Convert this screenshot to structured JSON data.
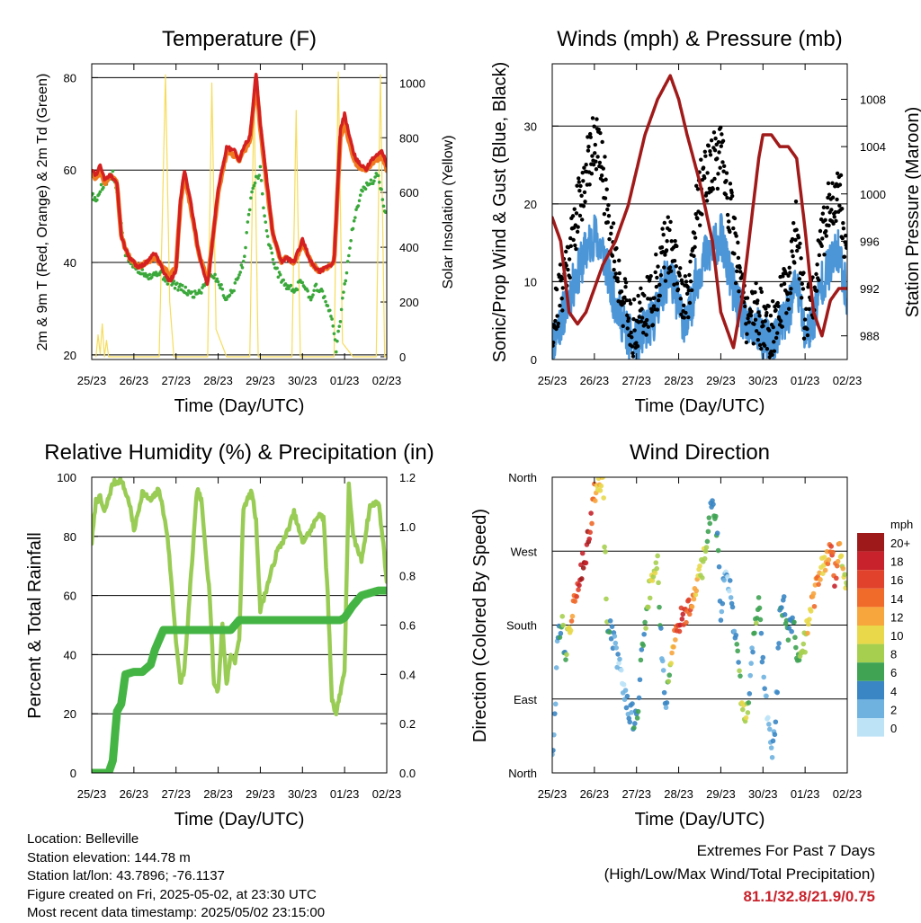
{
  "chart_data": [
    {
      "type": "line",
      "title": "Temperature (F)",
      "xlabel": "Time (Day/UTC)",
      "ylabel": "2m & 9m T (Red, Orange) & 2m Td (Green)",
      "y2label": "Solar Insolation (Yellow)",
      "x_ticks": [
        "25/23",
        "26/23",
        "27/23",
        "28/23",
        "29/23",
        "30/23",
        "01/23",
        "02/23"
      ],
      "y_ticks": [
        20,
        40,
        60,
        80
      ],
      "y2_ticks": [
        0,
        200,
        400,
        600,
        800,
        1000
      ],
      "ylim": [
        19,
        83
      ],
      "y2lim": [
        -10,
        1070
      ],
      "grid": true,
      "series": [
        {
          "name": "2m T",
          "color": "#d42020",
          "axis": "left",
          "x": [
            0,
            0.1,
            0.2,
            0.3,
            0.45,
            0.6,
            0.7,
            0.8,
            0.9,
            1.0,
            1.1,
            1.3,
            1.5,
            1.7,
            1.85,
            2.0,
            2.1,
            2.2,
            2.35,
            2.5,
            2.6,
            2.75,
            3.0,
            3.2,
            3.4,
            3.5,
            3.6,
            3.75,
            3.9,
            4.0,
            4.15,
            4.3,
            4.5,
            4.6,
            4.8,
            5.0,
            5.2,
            5.4,
            5.6,
            5.75,
            5.9,
            6.0,
            6.2,
            6.3,
            6.5,
            6.7,
            6.9,
            7.0
          ],
          "values": [
            60,
            59,
            61,
            58,
            59,
            57,
            46,
            43,
            41,
            40,
            39,
            40,
            42,
            38,
            36,
            38,
            53,
            60,
            53,
            44,
            40,
            35,
            56,
            65,
            64,
            62,
            65,
            67,
            81,
            70,
            58,
            46,
            40,
            41,
            40,
            45,
            40,
            38,
            39,
            40,
            69,
            72,
            64,
            62,
            60,
            63,
            64,
            61
          ]
        },
        {
          "name": "9m T",
          "color": "#f07a20",
          "axis": "left",
          "x": [
            0,
            0.1,
            0.2,
            0.3,
            0.45,
            0.6,
            0.7,
            0.8,
            0.9,
            1.0,
            1.1,
            1.3,
            1.5,
            1.7,
            1.85,
            2.0,
            2.1,
            2.2,
            2.35,
            2.5,
            2.6,
            2.75,
            3.0,
            3.2,
            3.4,
            3.5,
            3.6,
            3.75,
            3.9,
            4.0,
            4.15,
            4.3,
            4.5,
            4.6,
            4.8,
            5.0,
            5.2,
            5.4,
            5.6,
            5.75,
            5.9,
            6.0,
            6.2,
            6.3,
            6.5,
            6.7,
            6.9,
            7.0
          ],
          "values": [
            59,
            58,
            60,
            57,
            59,
            57,
            46,
            43,
            41,
            40,
            39,
            40,
            41,
            39,
            37,
            39,
            52,
            59,
            52,
            44,
            40,
            36,
            55,
            64,
            63,
            62,
            64,
            66,
            79,
            69,
            57,
            46,
            40,
            41,
            40,
            44,
            40,
            38,
            39,
            40,
            67,
            70,
            63,
            61,
            60,
            62,
            63,
            60
          ]
        },
        {
          "name": "2m Td",
          "color": "#3aa83a",
          "axis": "left",
          "x": [
            0,
            0.1,
            0.2,
            0.3,
            0.4,
            0.5,
            0.6,
            0.8,
            1.0,
            1.2,
            1.4,
            1.6,
            1.8,
            2.0,
            2.2,
            2.4,
            2.6,
            2.8,
            3.0,
            3.2,
            3.4,
            3.6,
            3.8,
            3.9,
            4.0,
            4.1,
            4.2,
            4.4,
            4.6,
            4.8,
            5.0,
            5.2,
            5.3,
            5.5,
            5.6,
            5.7,
            5.8,
            6.0,
            6.2,
            6.4,
            6.6,
            6.8,
            6.9,
            7.0
          ],
          "values": [
            55,
            53,
            56,
            57,
            58,
            59,
            55,
            42,
            39,
            38,
            37,
            38,
            36,
            35,
            34,
            33,
            34,
            38,
            36,
            32,
            35,
            40,
            56,
            58,
            60,
            50,
            44,
            38,
            35,
            34,
            36,
            32,
            35,
            33,
            30,
            28,
            21,
            35,
            48,
            56,
            57,
            59,
            54,
            49
          ]
        },
        {
          "name": "Solar Insolation",
          "color": "#f6dc5a",
          "axis": "right",
          "x": [
            0.1,
            0.15,
            0.2,
            0.25,
            0.3,
            0.35,
            0.4,
            1.2,
            1.6,
            1.75,
            1.85,
            1.95,
            2.3,
            2.75,
            2.85,
            2.95,
            3.2,
            3.3,
            3.75,
            3.85,
            3.95,
            4.2,
            4.3,
            4.75,
            4.85,
            4.95,
            5.2,
            5.3,
            5.75,
            5.85,
            5.95,
            6.2,
            6.3,
            6.75,
            6.85,
            6.95,
            7.0
          ],
          "values": [
            0,
            80,
            10,
            120,
            0,
            60,
            0,
            0,
            0,
            1030,
            200,
            0,
            0,
            0,
            1000,
            100,
            0,
            0,
            0,
            960,
            0,
            0,
            0,
            0,
            900,
            0,
            0,
            0,
            0,
            1040,
            50,
            0,
            0,
            0,
            1030,
            0,
            0
          ]
        }
      ]
    },
    {
      "type": "scatter",
      "title": "Winds (mph) & Pressure (mb)",
      "xlabel": "Time (Day/UTC)",
      "ylabel": "Sonic/Prop Wind & Gust (Blue, Black)",
      "y2label": "Station Pressure (Maroon)",
      "x_ticks": [
        "25/23",
        "26/23",
        "27/23",
        "28/23",
        "29/23",
        "30/23",
        "01/23",
        "02/23"
      ],
      "y_ticks": [
        0,
        10,
        20,
        30
      ],
      "y2_ticks": [
        988,
        992,
        996,
        1000,
        1004,
        1008
      ],
      "ylim": [
        0,
        38
      ],
      "y2lim": [
        986,
        1011
      ],
      "grid": true,
      "series": [
        {
          "name": "Sonic/Prop Wind",
          "color": "#4c96d8",
          "axis": "left",
          "x": [
            0,
            0.2,
            0.4,
            0.6,
            0.8,
            1.0,
            1.2,
            1.4,
            1.6,
            1.8,
            2.0,
            2.2,
            2.4,
            2.6,
            2.8,
            3.0,
            3.2,
            3.4,
            3.6,
            3.8,
            4.0,
            4.2,
            4.4,
            4.6,
            4.8,
            5.0,
            5.2,
            5.4,
            5.6,
            5.8,
            6.0,
            6.2,
            6.4,
            6.6,
            6.8,
            7.0
          ],
          "values": [
            2,
            5,
            8,
            11,
            14,
            16,
            14,
            9,
            6,
            3,
            2,
            4,
            5,
            9,
            11,
            7,
            4,
            10,
            13,
            14,
            16,
            11,
            7,
            4,
            4,
            3,
            2,
            4,
            6,
            10,
            3,
            5,
            10,
            12,
            14,
            8
          ]
        },
        {
          "name": "Gust",
          "color": "#000000",
          "axis": "left",
          "x": [
            0,
            0.2,
            0.4,
            0.6,
            0.8,
            1.0,
            1.2,
            1.4,
            1.6,
            1.8,
            2.0,
            2.2,
            2.4,
            2.6,
            2.8,
            3.0,
            3.2,
            3.4,
            3.6,
            3.8,
            4.0,
            4.2,
            4.4,
            4.6,
            4.8,
            5.0,
            5.2,
            5.4,
            5.6,
            5.8,
            6.0,
            6.2,
            6.4,
            6.6,
            6.8,
            7.0
          ],
          "values": [
            4,
            9,
            14,
            19,
            24,
            29,
            24,
            16,
            10,
            5,
            4,
            7,
            8,
            13,
            15,
            10,
            6,
            18,
            24,
            25,
            26,
            20,
            12,
            6,
            6,
            5,
            4,
            7,
            9,
            18,
            5,
            9,
            16,
            20,
            22,
            14
          ]
        },
        {
          "name": "Station Pressure",
          "color": "#a11a1a",
          "axis": "right",
          "x": [
            0,
            0.2,
            0.4,
            0.6,
            0.8,
            1.0,
            1.2,
            1.5,
            1.8,
            2.0,
            2.2,
            2.5,
            2.8,
            3.0,
            3.2,
            3.5,
            3.8,
            4.0,
            4.2,
            4.3,
            4.5,
            4.7,
            4.9,
            5.0,
            5.2,
            5.4,
            5.6,
            5.8,
            6.0,
            6.2,
            6.4,
            6.6,
            6.8,
            7.0
          ],
          "values": [
            998,
            996,
            990,
            989,
            990,
            992,
            994,
            996,
            999,
            1002,
            1005,
            1008,
            1010,
            1008,
            1005,
            1001,
            996,
            990,
            988,
            987,
            991,
            997,
            1003,
            1005,
            1005,
            1004,
            1004,
            1003,
            997,
            990,
            988,
            991,
            992,
            992
          ]
        }
      ]
    },
    {
      "type": "line",
      "title": "Relative Humidity (%) & Precipitation (in)",
      "xlabel": "Time (Day/UTC)",
      "ylabel": "Percent & Total Rainfall",
      "x_ticks": [
        "25/23",
        "26/23",
        "27/23",
        "28/23",
        "29/23",
        "30/23",
        "01/23",
        "02/23"
      ],
      "y_ticks": [
        0,
        20,
        40,
        60,
        80,
        100
      ],
      "y2_ticks": [
        "0.0",
        "0.2",
        "0.4",
        "0.6",
        "0.8",
        "1.0",
        "1.2"
      ],
      "ylim": [
        0,
        100
      ],
      "y2lim": [
        0,
        1.2
      ],
      "grid": true,
      "series": [
        {
          "name": "Relative Humidity",
          "color": "#99cc55",
          "axis": "left",
          "x": [
            0,
            0.1,
            0.2,
            0.3,
            0.5,
            0.7,
            0.9,
            1.0,
            1.1,
            1.2,
            1.4,
            1.6,
            1.8,
            2.0,
            2.1,
            2.2,
            2.3,
            2.5,
            2.6,
            2.8,
            2.9,
            3.0,
            3.1,
            3.2,
            3.3,
            3.4,
            3.5,
            3.6,
            3.8,
            3.9,
            4.0,
            4.2,
            4.4,
            4.6,
            4.8,
            5.0,
            5.2,
            5.4,
            5.5,
            5.6,
            5.7,
            5.8,
            6.0,
            6.1,
            6.2,
            6.4,
            6.6,
            6.8,
            6.9,
            7.0
          ],
          "values": [
            78,
            92,
            93,
            88,
            98,
            99,
            91,
            82,
            88,
            95,
            92,
            96,
            80,
            45,
            30,
            35,
            55,
            96,
            92,
            60,
            30,
            28,
            50,
            30,
            40,
            38,
            45,
            90,
            95,
            85,
            55,
            65,
            75,
            80,
            88,
            78,
            82,
            88,
            86,
            60,
            25,
            20,
            35,
            98,
            80,
            72,
            90,
            92,
            80,
            65
          ]
        },
        {
          "name": "Total Rainfall",
          "color": "#44b544",
          "axis": "right",
          "x": [
            0,
            0.4,
            0.5,
            0.6,
            0.7,
            0.8,
            1.0,
            1.2,
            1.4,
            1.5,
            1.7,
            2.0,
            2.4,
            2.6,
            2.8,
            3.0,
            3.3,
            3.5,
            3.7,
            4.0,
            4.4,
            4.8,
            5.2,
            5.6,
            5.9,
            6.0,
            6.2,
            6.4,
            6.6,
            6.8,
            7.0
          ],
          "values": [
            0,
            0,
            0.05,
            0.25,
            0.28,
            0.4,
            0.41,
            0.41,
            0.44,
            0.5,
            0.58,
            0.58,
            0.58,
            0.58,
            0.58,
            0.58,
            0.58,
            0.62,
            0.62,
            0.62,
            0.62,
            0.62,
            0.62,
            0.62,
            0.62,
            0.63,
            0.68,
            0.72,
            0.73,
            0.74,
            0.74
          ]
        }
      ]
    },
    {
      "type": "scatter",
      "title": "Wind Direction",
      "xlabel": "Time (Day/UTC)",
      "ylabel": "Direction (Colored By Speed)",
      "x_ticks": [
        "25/23",
        "26/23",
        "27/23",
        "28/23",
        "29/23",
        "30/23",
        "01/23",
        "02/23"
      ],
      "y_ticks": [
        "North",
        "East",
        "South",
        "West",
        "North"
      ],
      "ylim": [
        0,
        360
      ],
      "grid": true,
      "legend_title": "mph",
      "legend_labels": [
        "20+",
        "18",
        "16",
        "14",
        "12",
        "10",
        "8",
        "6",
        "4",
        "2",
        "0"
      ],
      "legend_colors": [
        "#9e1a1a",
        "#c8232c",
        "#e0422b",
        "#f06a2a",
        "#f7a53d",
        "#e8d84a",
        "#a6cf4f",
        "#3fa353",
        "#3a86c4",
        "#6fb2e0",
        "#bde3f7"
      ],
      "x": [
        0.02,
        0.05,
        0.08,
        0.12,
        0.15,
        0.25,
        0.3,
        0.35,
        0.4,
        0.45,
        0.5,
        0.6,
        0.7,
        0.8,
        0.9,
        1.0,
        1.1,
        1.2,
        1.3,
        1.4,
        1.5,
        1.6,
        1.7,
        1.8,
        2.0,
        2.1,
        2.2,
        2.3,
        2.4,
        2.5,
        2.6,
        2.7,
        2.8,
        2.9,
        3.0,
        3.1,
        3.2,
        3.3,
        3.4,
        3.5,
        3.6,
        3.8,
        3.9,
        4.0,
        4.1,
        4.2,
        4.3,
        4.4,
        4.5,
        4.6,
        4.7,
        4.8,
        4.9,
        5.0,
        5.1,
        5.2,
        5.3,
        5.4,
        5.5,
        5.6,
        5.7,
        5.8,
        5.9,
        6.0,
        6.1,
        6.2,
        6.3,
        6.4,
        6.5,
        6.6,
        6.7,
        6.8,
        6.9,
        7.0
      ],
      "values": [
        30,
        60,
        90,
        150,
        170,
        180,
        140,
        160,
        180,
        190,
        210,
        230,
        250,
        270,
        300,
        340,
        350,
        355,
        190,
        170,
        150,
        130,
        100,
        80,
        60,
        130,
        180,
        220,
        250,
        260,
        150,
        80,
        140,
        170,
        180,
        190,
        195,
        200,
        220,
        240,
        260,
        330,
        300,
        200,
        240,
        230,
        180,
        140,
        80,
        60,
        120,
        170,
        200,
        130,
        80,
        20,
        60,
        190,
        200,
        160,
        190,
        150,
        150,
        160,
        190,
        210,
        230,
        250,
        260,
        280,
        240,
        270,
        250,
        220
      ],
      "speeds": [
        2,
        2,
        2,
        3,
        3,
        8,
        6,
        9,
        10,
        12,
        14,
        16,
        19,
        20,
        17,
        12,
        11,
        11,
        6,
        4,
        3,
        2,
        2,
        3,
        4,
        5,
        6,
        8,
        9,
        8,
        4,
        3,
        9,
        13,
        16,
        17,
        15,
        14,
        12,
        9,
        8,
        4,
        6,
        3,
        2,
        2,
        3,
        5,
        8,
        9,
        2,
        6,
        8,
        3,
        2,
        3,
        3,
        4,
        5,
        6,
        5,
        6,
        7,
        9,
        11,
        12,
        13,
        10,
        12,
        14,
        16,
        12,
        10,
        8
      ]
    }
  ],
  "footer": {
    "location": "Location: Belleville",
    "elevation": "Station elevation: 144.78 m",
    "latlon": "Station lat/lon: 43.7896; -76.1137",
    "created": "Figure created on Fri, 2025-05-02, at 23:30 UTC",
    "recent": "Most recent data timestamp: 2025/05/02 23:15:00"
  },
  "extremes": {
    "title": "Extremes For Past 7 Days",
    "subtitle": "(High/Low/Max Wind/Total Precipitation)",
    "values": "81.1/32.8/21.9/0.75"
  }
}
